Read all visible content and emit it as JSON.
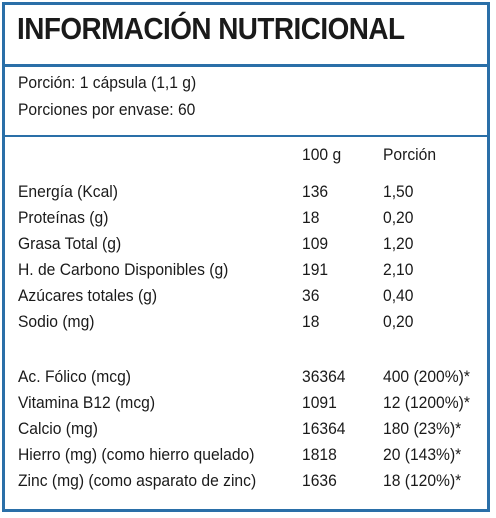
{
  "title": "INFORMACIÓN NUTRICIONAL",
  "serving": {
    "portion": "Porción: 1 cápsula  (1,1 g)",
    "portions_per_container": "Porciones por envase:  60"
  },
  "columns": {
    "per100": "100 g",
    "portion": "Porción"
  },
  "macros": [
    {
      "name": "Energía (Kcal)",
      "per100": "136",
      "portion": "1,50"
    },
    {
      "name": "Proteínas (g)",
      "per100": "18",
      "portion": "0,20"
    },
    {
      "name": "Grasa Total (g)",
      "per100": "109",
      "portion": "1,20"
    },
    {
      "name": "H. de Carbono Disponibles (g)",
      "per100": "191",
      "portion": "2,10"
    },
    {
      "name": "Azúcares totales (g)",
      "per100": "36",
      "portion": "0,40"
    },
    {
      "name": "Sodio (mg)",
      "per100": "18",
      "portion": "0,20"
    }
  ],
  "micros": [
    {
      "name": "Ac. Fólico (mcg)",
      "per100": "36364",
      "portion": "400 (200%)*"
    },
    {
      "name": "Vitamina B12 (mcg)",
      "per100": "1091",
      "portion": "12 (1200%)*"
    },
    {
      "name": "Calcio (mg)",
      "per100": "16364",
      "portion": "180 (23%)*"
    },
    {
      "name": "Hierro (mg) (como hierro quelado)",
      "per100": "1818",
      "portion": "20 (143%)*"
    },
    {
      "name": "Zinc (mg) (como asparato de zinc)",
      "per100": "1636",
      "portion": "18 (120%)*"
    }
  ],
  "colors": {
    "border": "#2a6fa8",
    "text": "#1a1a1a"
  }
}
